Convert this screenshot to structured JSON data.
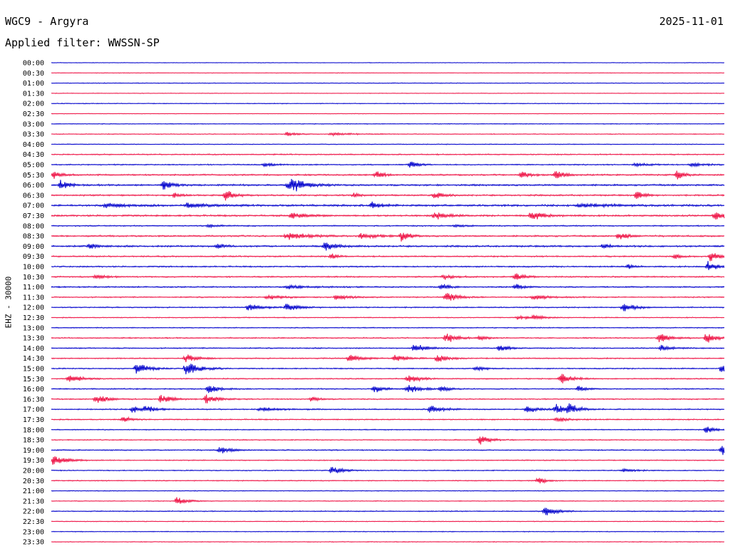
{
  "header": {
    "station": "WGC9 - Argyra",
    "date": "2025-11-01",
    "filter": "Applied filter: WWSSN-SP"
  },
  "chart_data": {
    "type": "line",
    "chart_kind": "helicorder",
    "ylabel": "EHZ - 30000",
    "colors": {
      "a": "#0000cc",
      "b": "#ee1144"
    },
    "row_labels": [
      "00:00",
      "00:30",
      "01:00",
      "01:30",
      "02:00",
      "02:30",
      "03:00",
      "03:30",
      "04:00",
      "04:30",
      "05:00",
      "05:30",
      "06:00",
      "06:30",
      "07:00",
      "07:30",
      "08:00",
      "08:30",
      "09:00",
      "09:30",
      "10:00",
      "10:30",
      "11:00",
      "11:30",
      "12:00",
      "12:30",
      "13:00",
      "13:30",
      "14:00",
      "14:30",
      "15:00",
      "15:30",
      "16:00",
      "16:30",
      "17:00",
      "17:30",
      "18:00",
      "18:30",
      "19:00",
      "19:30",
      "20:00",
      "20:30",
      "21:00",
      "21:30",
      "22:00",
      "22:30",
      "23:00",
      "23:30"
    ],
    "row_minutes": 30,
    "noise_amplitude": [
      0.3,
      0.3,
      0.4,
      0.3,
      0.4,
      0.3,
      0.4,
      0.4,
      0.4,
      0.6,
      0.6,
      0.8,
      0.9,
      0.8,
      1.0,
      0.9,
      0.6,
      0.8,
      0.9,
      0.7,
      0.7,
      0.7,
      0.7,
      0.6,
      0.6,
      0.5,
      0.5,
      0.6,
      0.6,
      0.6,
      0.6,
      0.6,
      0.6,
      0.6,
      0.6,
      0.6,
      0.5,
      0.5,
      0.6,
      0.5,
      0.5,
      0.5,
      0.4,
      0.4,
      0.5,
      0.4,
      0.4,
      0.4
    ],
    "events": [
      {
        "row": 7,
        "minute": 10.5,
        "amp": 3,
        "dur": 0.8
      },
      {
        "row": 7,
        "minute": 12.5,
        "amp": 2.5,
        "dur": 1.5
      },
      {
        "row": 10,
        "minute": 9.5,
        "amp": 3,
        "dur": 0.8
      },
      {
        "row": 10,
        "minute": 16,
        "amp": 6,
        "dur": 0.6
      },
      {
        "row": 10,
        "minute": 26,
        "amp": 2.5,
        "dur": 1
      },
      {
        "row": 10,
        "minute": 28.5,
        "amp": 3,
        "dur": 1
      },
      {
        "row": 11,
        "minute": 0.1,
        "amp": 7,
        "dur": 0.5
      },
      {
        "row": 11,
        "minute": 14.5,
        "amp": 8,
        "dur": 0.5
      },
      {
        "row": 11,
        "minute": 21,
        "amp": 7,
        "dur": 0.5
      },
      {
        "row": 11,
        "minute": 22.5,
        "amp": 8,
        "dur": 0.6
      },
      {
        "row": 11,
        "minute": 27.9,
        "amp": 8,
        "dur": 0.5
      },
      {
        "row": 12,
        "minute": 0.4,
        "amp": 8,
        "dur": 0.6
      },
      {
        "row": 12,
        "minute": 5,
        "amp": 8,
        "dur": 0.6
      },
      {
        "row": 12,
        "minute": 10.5,
        "amp": 5,
        "dur": 1
      },
      {
        "row": 12,
        "minute": 10.7,
        "amp": 7,
        "dur": 0.6
      },
      {
        "row": 12,
        "minute": 10.9,
        "amp": 5,
        "dur": 1
      },
      {
        "row": 13,
        "minute": 5.5,
        "amp": 4,
        "dur": 0.5
      },
      {
        "row": 13,
        "minute": 7.8,
        "amp": 10,
        "dur": 0.6
      },
      {
        "row": 13,
        "minute": 13.5,
        "amp": 4,
        "dur": 0.5
      },
      {
        "row": 13,
        "minute": 17.1,
        "amp": 7,
        "dur": 0.6
      },
      {
        "row": 13,
        "minute": 26.1,
        "amp": 9,
        "dur": 0.5
      },
      {
        "row": 14,
        "minute": 2.4,
        "amp": 4,
        "dur": 1.5
      },
      {
        "row": 14,
        "minute": 6,
        "amp": 4,
        "dur": 1.5
      },
      {
        "row": 14,
        "minute": 14.3,
        "amp": 7,
        "dur": 0.6
      },
      {
        "row": 14,
        "minute": 23.5,
        "amp": 3,
        "dur": 2.5
      },
      {
        "row": 15,
        "minute": 10.7,
        "amp": 5,
        "dur": 1
      },
      {
        "row": 15,
        "minute": 17.1,
        "amp": 7,
        "dur": 0.8
      },
      {
        "row": 15,
        "minute": 21.4,
        "amp": 7,
        "dur": 1
      },
      {
        "row": 15,
        "minute": 29.6,
        "amp": 7,
        "dur": 1
      },
      {
        "row": 16,
        "minute": 7,
        "amp": 2,
        "dur": 1
      },
      {
        "row": 16,
        "minute": 18,
        "amp": 2,
        "dur": 1
      },
      {
        "row": 17,
        "minute": 10.5,
        "amp": 6,
        "dur": 1.5
      },
      {
        "row": 17,
        "minute": 13.8,
        "amp": 4,
        "dur": 1.5
      },
      {
        "row": 17,
        "minute": 15.6,
        "amp": 10,
        "dur": 0.5
      },
      {
        "row": 17,
        "minute": 25.3,
        "amp": 7,
        "dur": 0.6
      },
      {
        "row": 18,
        "minute": 1.7,
        "amp": 5,
        "dur": 0.5
      },
      {
        "row": 18,
        "minute": 7.4,
        "amp": 5,
        "dur": 0.5
      },
      {
        "row": 18,
        "minute": 12.2,
        "amp": 8,
        "dur": 0.8
      },
      {
        "row": 18,
        "minute": 24.6,
        "amp": 5,
        "dur": 0.5
      },
      {
        "row": 19,
        "minute": 12.5,
        "amp": 5,
        "dur": 0.5
      },
      {
        "row": 19,
        "minute": 27.8,
        "amp": 4,
        "dur": 0.5
      },
      {
        "row": 19,
        "minute": 29.4,
        "amp": 9,
        "dur": 0.6
      },
      {
        "row": 20,
        "minute": 25.7,
        "amp": 5,
        "dur": 0.5
      },
      {
        "row": 20,
        "minute": 29.3,
        "amp": 9,
        "dur": 0.6
      },
      {
        "row": 21,
        "minute": 2,
        "amp": 4,
        "dur": 0.8
      },
      {
        "row": 21,
        "minute": 17.5,
        "amp": 4,
        "dur": 0.8
      },
      {
        "row": 21,
        "minute": 20.7,
        "amp": 8,
        "dur": 0.6
      },
      {
        "row": 22,
        "minute": 10.5,
        "amp": 3,
        "dur": 1.5
      },
      {
        "row": 22,
        "minute": 17.4,
        "amp": 7,
        "dur": 0.5
      },
      {
        "row": 22,
        "minute": 20.7,
        "amp": 5,
        "dur": 0.6
      },
      {
        "row": 23,
        "minute": 9.6,
        "amp": 4,
        "dur": 1.2
      },
      {
        "row": 23,
        "minute": 12.7,
        "amp": 4,
        "dur": 1.2
      },
      {
        "row": 23,
        "minute": 17.6,
        "amp": 10,
        "dur": 0.8
      },
      {
        "row": 23,
        "minute": 21.5,
        "amp": 4,
        "dur": 1.2
      },
      {
        "row": 24,
        "minute": 8.8,
        "amp": 7,
        "dur": 0.8
      },
      {
        "row": 24,
        "minute": 10.5,
        "amp": 7,
        "dur": 0.8
      },
      {
        "row": 24,
        "minute": 25.5,
        "amp": 8,
        "dur": 0.8
      },
      {
        "row": 25,
        "minute": 20.8,
        "amp": 4,
        "dur": 0.8
      },
      {
        "row": 25,
        "minute": 21.5,
        "amp": 3,
        "dur": 0.8
      },
      {
        "row": 27,
        "minute": 17.6,
        "amp": 8,
        "dur": 0.8
      },
      {
        "row": 27,
        "minute": 19.1,
        "amp": 4,
        "dur": 0.6
      },
      {
        "row": 27,
        "minute": 27.1,
        "amp": 9,
        "dur": 0.8
      },
      {
        "row": 27,
        "minute": 29.2,
        "amp": 8,
        "dur": 0.8
      },
      {
        "row": 28,
        "minute": 16.2,
        "amp": 8,
        "dur": 0.8
      },
      {
        "row": 28,
        "minute": 20,
        "amp": 7,
        "dur": 0.6
      },
      {
        "row": 28,
        "minute": 27.2,
        "amp": 5,
        "dur": 0.8
      },
      {
        "row": 29,
        "minute": 6,
        "amp": 8,
        "dur": 0.8
      },
      {
        "row": 29,
        "minute": 13.3,
        "amp": 7,
        "dur": 0.8
      },
      {
        "row": 29,
        "minute": 15.3,
        "amp": 7,
        "dur": 0.8
      },
      {
        "row": 29,
        "minute": 17.2,
        "amp": 6,
        "dur": 0.8
      },
      {
        "row": 30,
        "minute": 3.8,
        "amp": 10,
        "dur": 0.8
      },
      {
        "row": 30,
        "minute": 6.0,
        "amp": 12,
        "dur": 1
      },
      {
        "row": 30,
        "minute": 18.9,
        "amp": 4,
        "dur": 0.8
      },
      {
        "row": 30,
        "minute": 29.9,
        "amp": 10,
        "dur": 0.6
      },
      {
        "row": 31,
        "minute": 0.8,
        "amp": 8,
        "dur": 0.8
      },
      {
        "row": 31,
        "minute": 15.9,
        "amp": 7,
        "dur": 0.8
      },
      {
        "row": 31,
        "minute": 22.7,
        "amp": 9,
        "dur": 0.8
      },
      {
        "row": 32,
        "minute": 7,
        "amp": 8,
        "dur": 0.8
      },
      {
        "row": 32,
        "minute": 14.4,
        "amp": 6,
        "dur": 0.8
      },
      {
        "row": 32,
        "minute": 15.9,
        "amp": 8,
        "dur": 0.8
      },
      {
        "row": 32,
        "minute": 17.4,
        "amp": 5,
        "dur": 0.6
      },
      {
        "row": 32,
        "minute": 23.5,
        "amp": 5,
        "dur": 0.6
      },
      {
        "row": 33,
        "minute": 2,
        "amp": 8,
        "dur": 0.8
      },
      {
        "row": 33,
        "minute": 4.9,
        "amp": 8,
        "dur": 0.8
      },
      {
        "row": 33,
        "minute": 6.9,
        "amp": 8,
        "dur": 0.8
      },
      {
        "row": 33,
        "minute": 11.6,
        "amp": 4,
        "dur": 0.6
      },
      {
        "row": 34,
        "minute": 3.6,
        "amp": 6,
        "dur": 0.8
      },
      {
        "row": 34,
        "minute": 4.2,
        "amp": 5,
        "dur": 0.8
      },
      {
        "row": 34,
        "minute": 9.3,
        "amp": 3,
        "dur": 1.5
      },
      {
        "row": 34,
        "minute": 16.9,
        "amp": 8,
        "dur": 0.8
      },
      {
        "row": 34,
        "minute": 21.2,
        "amp": 6,
        "dur": 0.8
      },
      {
        "row": 34,
        "minute": 22.5,
        "amp": 8,
        "dur": 0.8
      },
      {
        "row": 34,
        "minute": 23.0,
        "amp": 9,
        "dur": 0.8
      },
      {
        "row": 35,
        "minute": 3.2,
        "amp": 5,
        "dur": 0.6
      },
      {
        "row": 35,
        "minute": 22.5,
        "amp": 4,
        "dur": 0.8
      },
      {
        "row": 36,
        "minute": 29.2,
        "amp": 6,
        "dur": 0.6
      },
      {
        "row": 37,
        "minute": 19.1,
        "amp": 8,
        "dur": 0.8
      },
      {
        "row": 38,
        "minute": 7.5,
        "amp": 6,
        "dur": 0.8
      },
      {
        "row": 38,
        "minute": 29.9,
        "amp": 9,
        "dur": 0.6
      },
      {
        "row": 39,
        "minute": 0.1,
        "amp": 12,
        "dur": 0.8
      },
      {
        "row": 40,
        "minute": 12.5,
        "amp": 7,
        "dur": 0.8
      },
      {
        "row": 40,
        "minute": 25.5,
        "amp": 3,
        "dur": 1
      },
      {
        "row": 41,
        "minute": 21.7,
        "amp": 7,
        "dur": 0.5
      },
      {
        "row": 43,
        "minute": 5.6,
        "amp": 7,
        "dur": 0.8
      },
      {
        "row": 44,
        "minute": 22,
        "amp": 9,
        "dur": 0.8
      }
    ]
  }
}
